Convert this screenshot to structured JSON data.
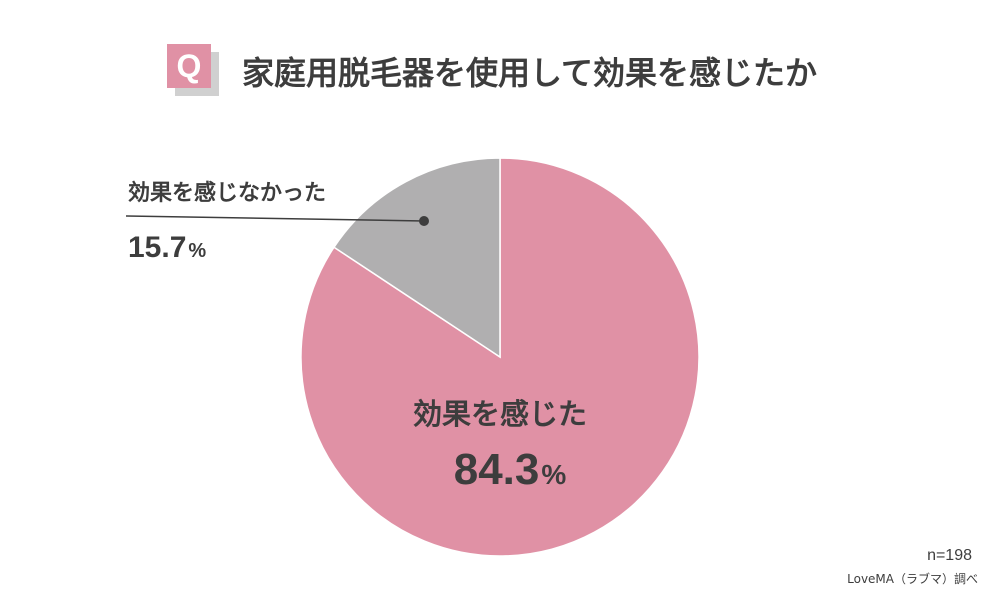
{
  "question": {
    "badge": "Q",
    "title": "家庭用脱毛器を使用して効果を感じたか"
  },
  "colors": {
    "felt": "#e091a5",
    "not_felt": "#b0afb0",
    "accent": "#e091a5",
    "text": "#3d3d3d"
  },
  "chart_data": {
    "type": "pie",
    "slices": [
      {
        "label": "効果を感じた",
        "value": 84.3,
        "value_text": "84.3",
        "unit": "%",
        "color": "#e091a5"
      },
      {
        "label": "効果を感じなかった",
        "value": 15.7,
        "value_text": "15.7",
        "unit": "%",
        "color": "#b0afb0"
      }
    ],
    "start": "12 o'clock",
    "direction": "clockwise",
    "legend": "none"
  },
  "footer": {
    "sample": "n=198",
    "source": "LoveMA（ラブマ）調べ"
  }
}
